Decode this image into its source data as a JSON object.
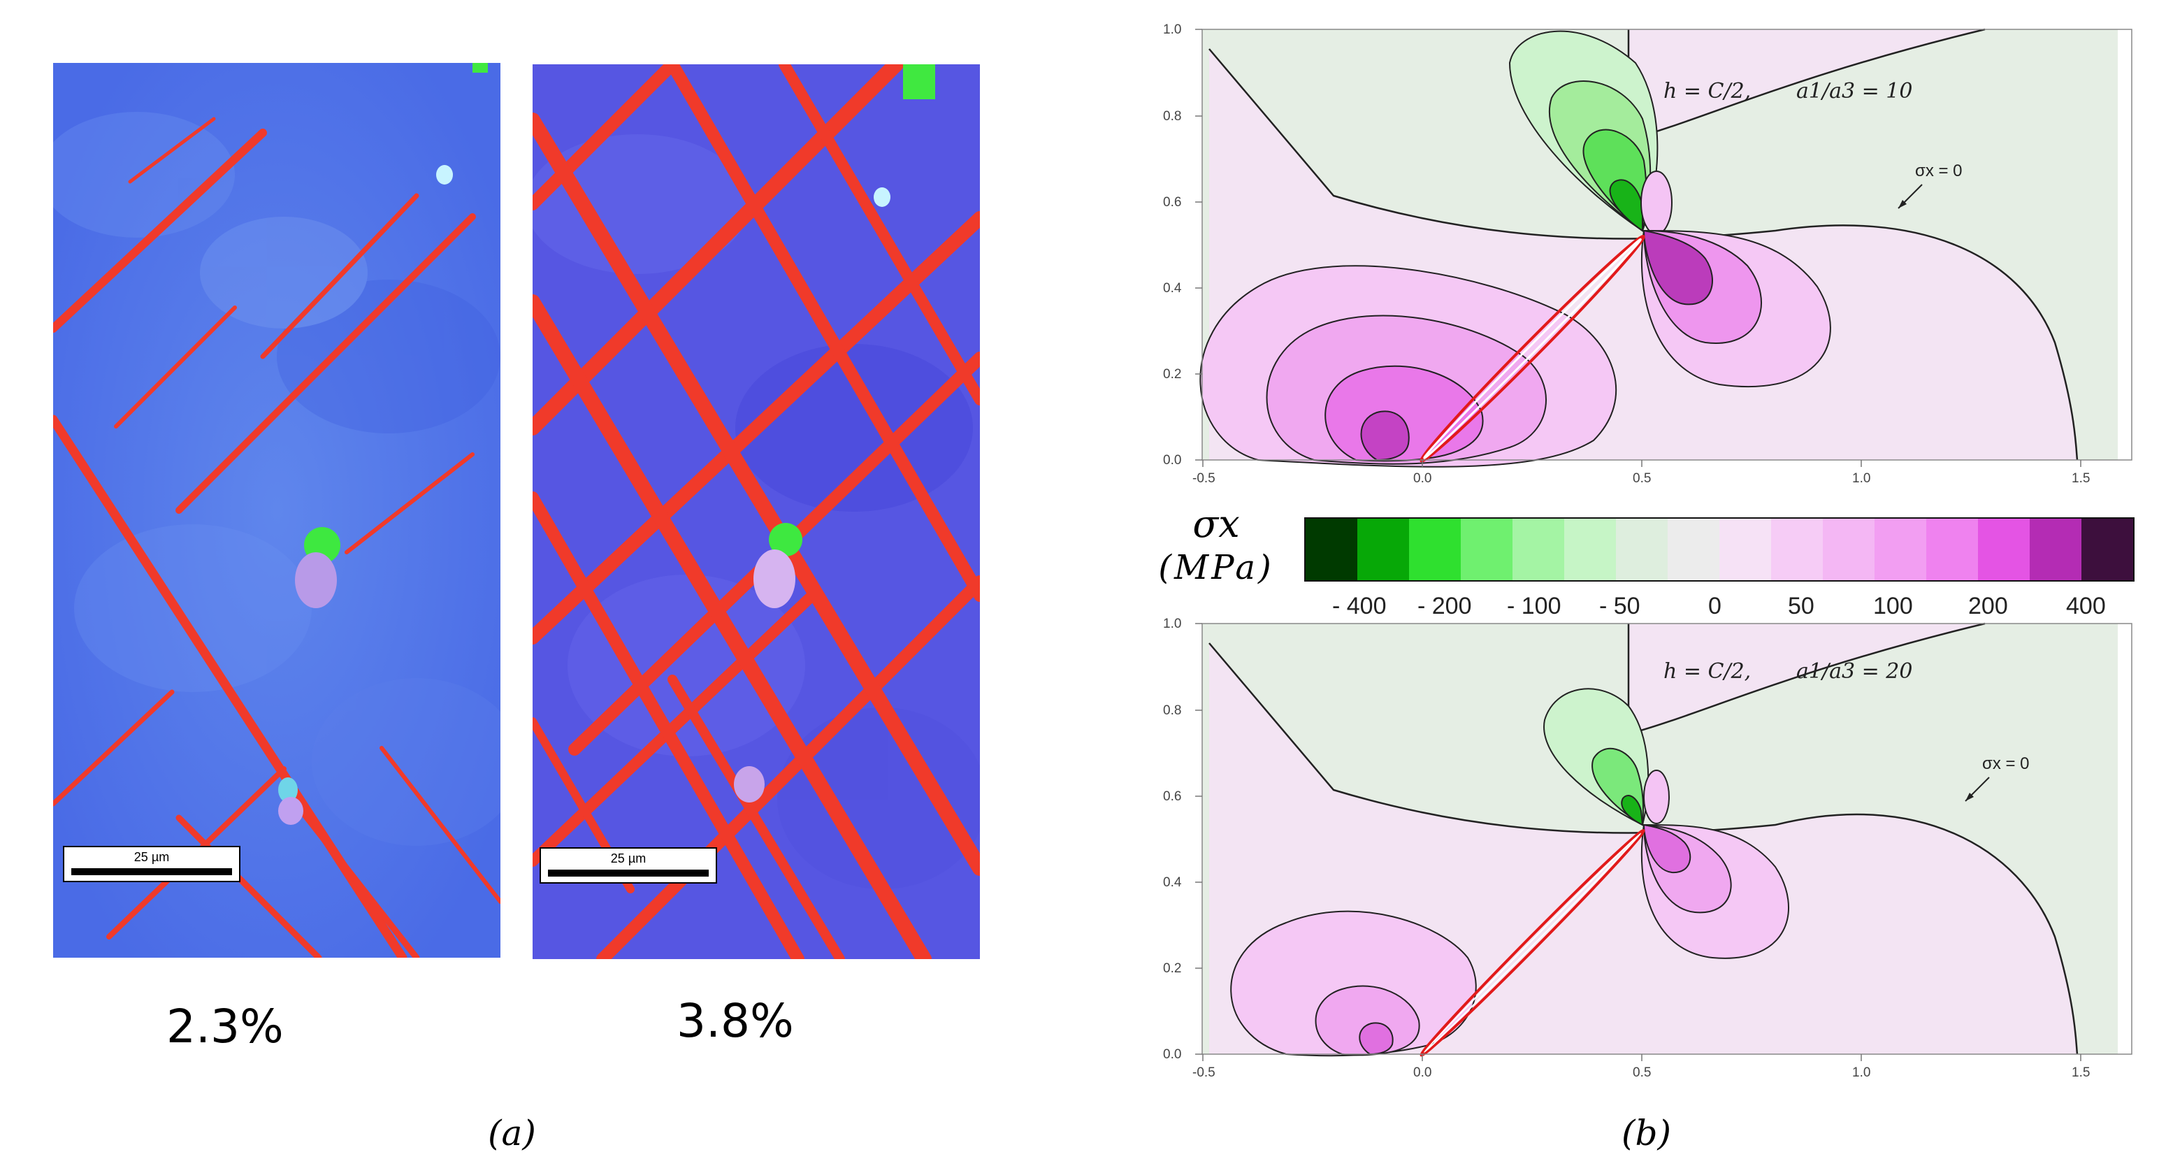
{
  "panel_a": {
    "label": "(a)",
    "left_map": {
      "scale_label": "25 µm",
      "strain": "2.3%"
    },
    "right_map": {
      "scale_label": "25 µm",
      "strain": "3.8%"
    }
  },
  "panel_b": {
    "label": "(b)",
    "colorbar": {
      "title_line1": "σx",
      "title_line2": "(MPa)",
      "colors": [
        "#003a00",
        "#07a807",
        "#2fe02f",
        "#6ff06f",
        "#a4f4a4",
        "#c6f5c6",
        "#deeede",
        "#ececec",
        "#f6e2f6",
        "#f6ccf6",
        "#f4b7f4",
        "#f29ef2",
        "#ef82ef",
        "#e454e4",
        "#b42cb4",
        "#3d0f3d"
      ],
      "tick_labels": [
        "- 400",
        "- 200",
        "- 100",
        "- 50",
        "0",
        "50",
        "100",
        "200",
        "400"
      ]
    },
    "top_plot": {
      "h_text": "h = C/2,",
      "ratio_text": "a1/a3 = 10",
      "zero_label": "σx = 0",
      "x_ticks": [
        "-0.5",
        "0.0",
        "0.5",
        "1.0",
        "1.5"
      ],
      "y_ticks": [
        "0.0",
        "0.2",
        "0.4",
        "0.6",
        "0.8",
        "1.0"
      ]
    },
    "bottom_plot": {
      "h_text": "h = C/2,",
      "ratio_text": "a1/a3 = 20",
      "zero_label": "σx = 0",
      "x_ticks": [
        "-0.5",
        "0.0",
        "0.5",
        "1.0",
        "1.5"
      ],
      "y_ticks": [
        "0.0",
        "0.2",
        "0.4",
        "0.6",
        "0.8",
        "1.0"
      ]
    }
  }
}
